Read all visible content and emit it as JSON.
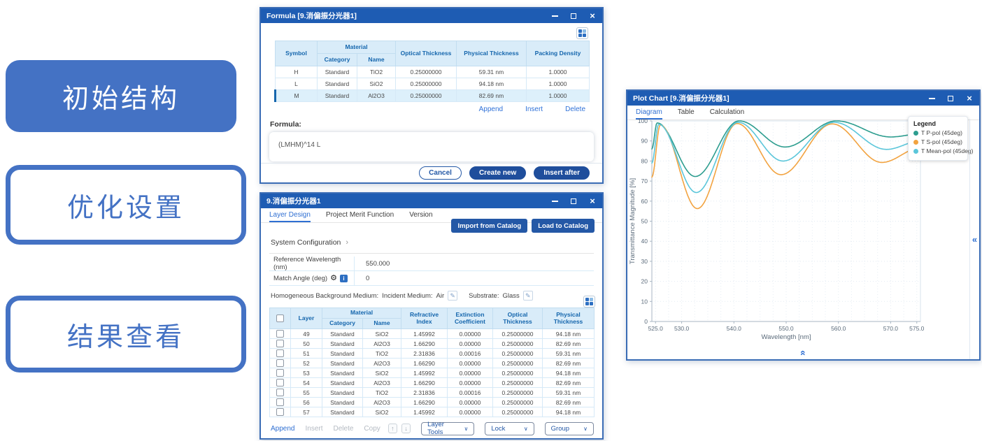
{
  "steps": [
    {
      "label": "初始结构",
      "style": "filled"
    },
    {
      "label": "优化设置",
      "style": "outlined"
    },
    {
      "label": "结果查看",
      "style": "outlined"
    }
  ],
  "colors": {
    "titlebar": "#1e5cb3",
    "accent_blue": "#2f6fd2",
    "button_blue": "#1f4e9c",
    "step_blue": "#4472c4",
    "table_header_bg": "#d9ecf9",
    "table_header_text": "#1566ad"
  },
  "icons": {
    "minimize": "minimize-bar",
    "maximize": "maximize-box",
    "close": "×",
    "grid": "grid-4-squares",
    "gear": "⚙",
    "info": "i",
    "edit": "✎",
    "chevron_right": "›",
    "dropdown_arrow": "∨",
    "arrow_up": "↑",
    "arrow_down": "↓",
    "collapse_left": "«",
    "expand_up": "«"
  },
  "formula_window": {
    "title": "Formula [9.消偏振分光器1]",
    "table": {
      "col_symbol": "Symbol",
      "col_material": "Material",
      "col_category": "Category",
      "col_name": "Name",
      "col_optical": "Optical Thickness",
      "col_physical": "Physical Thickness",
      "col_packing": "Packing Density",
      "rows": [
        {
          "symbol": "H",
          "category": "Standard",
          "name": "TiO2",
          "optical": "0.25000000",
          "physical": "59.31 nm",
          "packing": "1.0000",
          "selected": false
        },
        {
          "symbol": "L",
          "category": "Standard",
          "name": "SiO2",
          "optical": "0.25000000",
          "physical": "94.18 nm",
          "packing": "1.0000",
          "selected": false
        },
        {
          "symbol": "M",
          "category": "Standard",
          "name": "Al2O3",
          "optical": "0.25000000",
          "physical": "82.69 nm",
          "packing": "1.0000",
          "selected": true
        }
      ]
    },
    "links": [
      "Append",
      "Insert",
      "Delete"
    ],
    "formula_label": "Formula:",
    "formula_value": "(LMHM)^14 L",
    "buttons": {
      "cancel": "Cancel",
      "create_new": "Create new",
      "insert_after": "Insert after"
    }
  },
  "layer_window": {
    "title": "9.消偏振分光器1",
    "tabs": [
      {
        "label": "Layer Design",
        "active": true
      },
      {
        "label": "Project Merit Function",
        "active": false
      },
      {
        "label": "Version",
        "active": false
      }
    ],
    "catalog_buttons": [
      "Import from Catalog",
      "Load to Catalog"
    ],
    "system_configuration": "System Configuration",
    "fields": [
      {
        "label": "Reference Wavelength (nm)",
        "value": "550.000"
      },
      {
        "label": "Match Angle (deg)",
        "value": "0"
      }
    ],
    "background_medium": {
      "prefix": "Homogeneous Background Medium:",
      "incident_label": "Incident Medium:",
      "incident_value": "Air",
      "substrate_label": "Substrate:",
      "substrate_value": "Glass"
    },
    "table": {
      "col_layer": "Layer",
      "col_material": "Material",
      "col_category": "Category",
      "col_name": "Name",
      "col_refractive": "Refractive Index",
      "col_extinction": "Extinction Coefficient",
      "col_optical": "Optical Thickness",
      "col_physical": "Physical Thickness",
      "rows": [
        {
          "layer": "49",
          "category": "Standard",
          "name": "SiO2",
          "refractive": "1.45992",
          "extinction": "0.00000",
          "optical": "0.25000000",
          "physical": "94.18 nm"
        },
        {
          "layer": "50",
          "category": "Standard",
          "name": "Al2O3",
          "refractive": "1.66290",
          "extinction": "0.00000",
          "optical": "0.25000000",
          "physical": "82.69 nm"
        },
        {
          "layer": "51",
          "category": "Standard",
          "name": "TiO2",
          "refractive": "2.31836",
          "extinction": "0.00016",
          "optical": "0.25000000",
          "physical": "59.31 nm"
        },
        {
          "layer": "52",
          "category": "Standard",
          "name": "Al2O3",
          "refractive": "1.66290",
          "extinction": "0.00000",
          "optical": "0.25000000",
          "physical": "82.69 nm"
        },
        {
          "layer": "53",
          "category": "Standard",
          "name": "SiO2",
          "refractive": "1.45992",
          "extinction": "0.00000",
          "optical": "0.25000000",
          "physical": "94.18 nm"
        },
        {
          "layer": "54",
          "category": "Standard",
          "name": "Al2O3",
          "refractive": "1.66290",
          "extinction": "0.00000",
          "optical": "0.25000000",
          "physical": "82.69 nm"
        },
        {
          "layer": "55",
          "category": "Standard",
          "name": "TiO2",
          "refractive": "2.31836",
          "extinction": "0.00016",
          "optical": "0.25000000",
          "physical": "59.31 nm"
        },
        {
          "layer": "56",
          "category": "Standard",
          "name": "Al2O3",
          "refractive": "1.66290",
          "extinction": "0.00000",
          "optical": "0.25000000",
          "physical": "82.69 nm"
        },
        {
          "layer": "57",
          "category": "Standard",
          "name": "SiO2",
          "refractive": "1.45992",
          "extinction": "0.00000",
          "optical": "0.25000000",
          "physical": "94.18 nm"
        }
      ]
    },
    "toolbar": {
      "append": "Append",
      "insert": "Insert",
      "delete": "Delete",
      "copy": "Copy",
      "layer_tools": "Layer Tools",
      "lock": "Lock",
      "group": "Group"
    }
  },
  "plot_window": {
    "title": "Plot Chart [9.消偏振分光器1]",
    "tabs": [
      {
        "label": "Diagram",
        "active": true
      },
      {
        "label": "Table",
        "active": false
      },
      {
        "label": "Calculation",
        "active": false
      }
    ],
    "legend_title": "Legend"
  },
  "chart_data": {
    "type": "line",
    "title": "",
    "xlabel": "Wavelength [nm]",
    "ylabel": "Transmittance Magnitude [%]",
    "xlim": [
      524.3,
      575.7
    ],
    "ylim": [
      0,
      100
    ],
    "x_ticks": [
      525.0,
      530.0,
      540.0,
      550.0,
      560.0,
      570.0,
      575.0
    ],
    "y_ticks": [
      0,
      10,
      20,
      30,
      40,
      50,
      60,
      70,
      80,
      90,
      100
    ],
    "grid": true,
    "legend_position": "top-right",
    "series": [
      {
        "name": "T P-pol (45deg)",
        "color": "#2d9d8f",
        "points": [
          [
            524.3,
            86.0
          ],
          [
            525.3,
            99.0
          ],
          [
            532.6,
            72.3
          ],
          [
            541.0,
            100.0
          ],
          [
            549.8,
            87.0
          ],
          [
            559.6,
            100.0
          ],
          [
            570.0,
            92.0
          ],
          [
            575.7,
            93.5
          ]
        ]
      },
      {
        "name": "T S-pol (45deg)",
        "color": "#f2a340",
        "points": [
          [
            524.3,
            72.0
          ],
          [
            525.9,
            98.0
          ],
          [
            533.0,
            56.3
          ],
          [
            540.6,
            98.7
          ],
          [
            549.0,
            73.2
          ],
          [
            558.8,
            98.5
          ],
          [
            568.3,
            79.3
          ],
          [
            575.7,
            86.5
          ]
        ]
      },
      {
        "name": "T Mean-pol (45deg)",
        "color": "#5bc6da",
        "points": [
          [
            524.3,
            79.0
          ],
          [
            525.6,
            98.3
          ],
          [
            532.8,
            64.3
          ],
          [
            540.8,
            99.3
          ],
          [
            549.4,
            80.0
          ],
          [
            559.2,
            99.3
          ],
          [
            569.2,
            85.8
          ],
          [
            575.7,
            90.0
          ]
        ]
      }
    ]
  }
}
